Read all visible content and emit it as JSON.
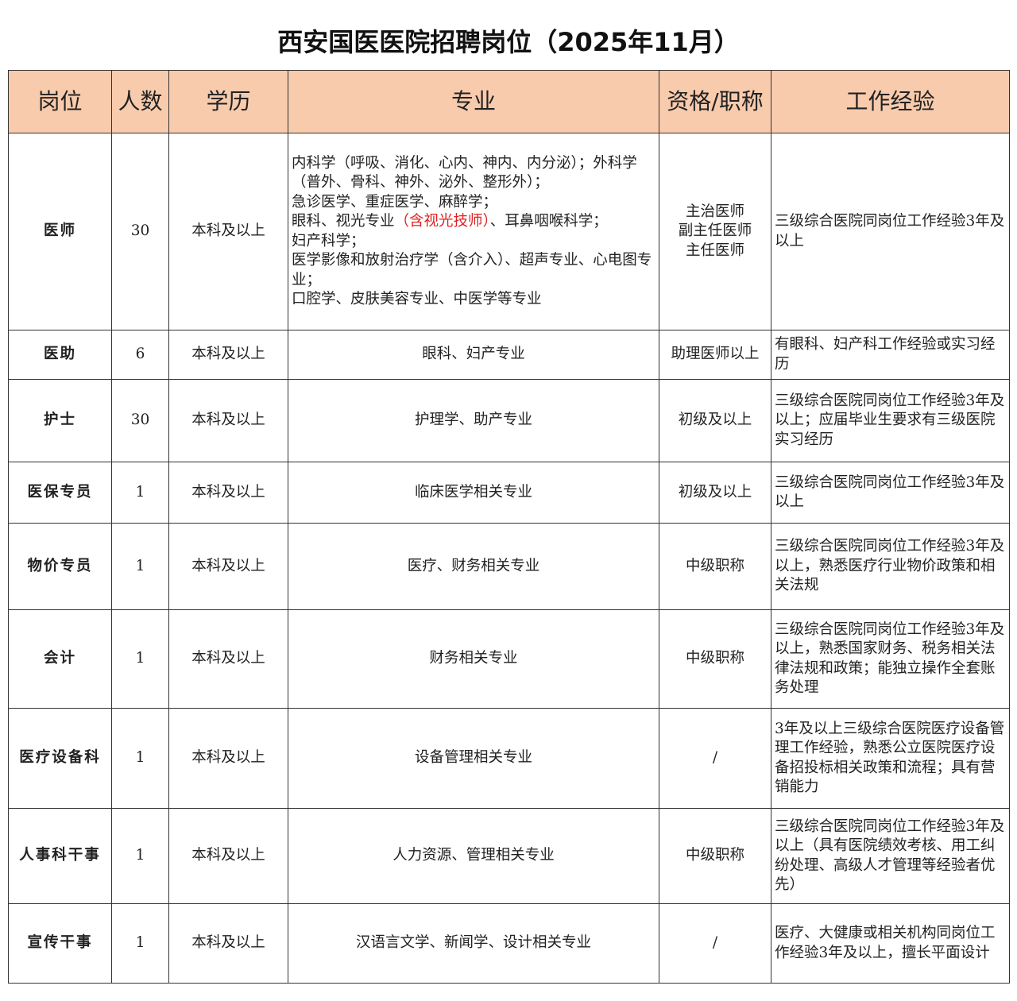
{
  "title": "西安国医医院招聘岗位（2025年11月）",
  "table": {
    "header": [
      "岗位",
      "人数",
      "学历",
      "专业",
      "资格/职称",
      "工作经验"
    ],
    "rows": [
      {
        "position": "医师",
        "count": "30",
        "education": "本科及以上",
        "specialty": [
          [
            {
              "text": "内科学（呼吸、消化、心内、神内、内分泌）；外科学（普外、骨科、神外、泌外、整形外）；"
            }
          ],
          [
            {
              "text": "急诊医学、重症医学、麻醉学；"
            }
          ],
          [
            {
              "text": "眼科、视光专业"
            },
            {
              "text": "（含视光技师）",
              "color": "#e02020"
            },
            {
              "text": "、耳鼻咽喉科学；"
            }
          ],
          [
            {
              "text": "妇产科学；"
            }
          ],
          [
            {
              "text": "医学影像和放射治疗学（含介入）、超声专业、心电图专业；"
            }
          ],
          [
            {
              "text": "口腔学、皮肤美容专业、中医学等专业"
            }
          ]
        ],
        "qualification": [
          "主治医师",
          "副主任医师",
          "主任医师"
        ],
        "experience": "三级综合医院同岗位工作经验3年及以上"
      },
      {
        "position": "医助",
        "count": "6",
        "education": "本科及以上",
        "specialty": "眼科、妇产专业",
        "qualification": "助理医师以上",
        "experience": "有眼科、妇产科工作经验或实习经历"
      },
      {
        "position": "护士",
        "count": "30",
        "education": "本科及以上",
        "specialty": "护理学、助产专业",
        "qualification": "初级及以上",
        "experience": "三级综合医院同岗位工作经验3年及以上；应届毕业生要求有三级医院实习经历"
      },
      {
        "position": "医保专员",
        "count": "1",
        "education": "本科及以上",
        "specialty": "临床医学相关专业",
        "qualification": "初级及以上",
        "experience": "三级综合医院同岗位工作经验3年及以上"
      },
      {
        "position": "物价专员",
        "count": "1",
        "education": "本科及以上",
        "specialty": "医疗、财务相关专业",
        "qualification": "中级职称",
        "experience": "三级综合医院同岗位工作经验3年及以上，熟悉医疗行业物价政策和相关法规"
      },
      {
        "position": "会计",
        "count": "1",
        "education": "本科及以上",
        "specialty": "财务相关专业",
        "qualification": "中级职称",
        "experience": "三级综合医院同岗位工作经验3年及以上，熟悉国家财务、税务相关法律法规和政策；能独立操作全套账务处理"
      },
      {
        "position": "医疗设备科",
        "count": "1",
        "education": "本科及以上",
        "specialty": "设备管理相关专业",
        "qualification": "/",
        "experience": "3年及以上三级综合医院医疗设备管理工作经验，熟悉公立医院医疗设备招投标相关政策和流程；具有营销能力"
      },
      {
        "position": "人事科干事",
        "count": "1",
        "education": "本科及以上",
        "specialty": "人力资源、管理相关专业",
        "qualification": "中级职称",
        "experience": "三级综合医院同岗位工作经验3年及以上（具有医院绩效考核、用工纠纷处理、高级人才管理等经验者优先）"
      },
      {
        "position": "宣传干事",
        "count": "1",
        "education": "本科及以上",
        "specialty": "汉语言文学、新闻学、设计相关专业",
        "qualification": "/",
        "experience": "医疗、大健康或相关机构同岗位工作经验3年及以上，擅长平面设计"
      }
    ]
  }
}
